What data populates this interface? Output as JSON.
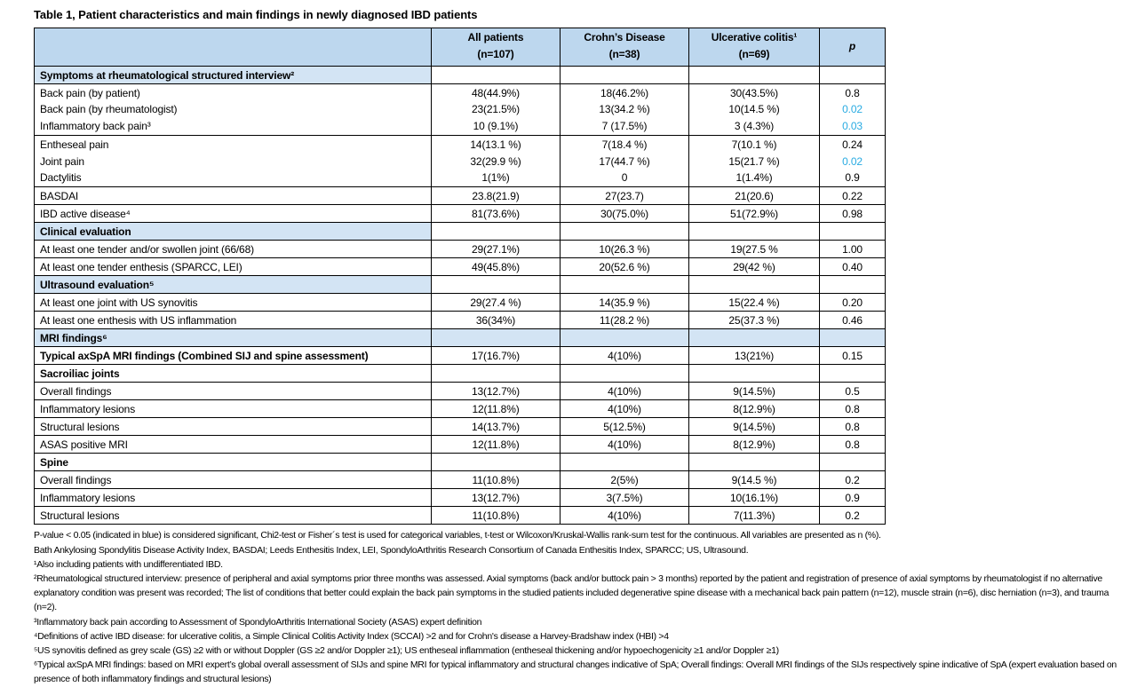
{
  "page": {
    "title": "Table 1, Patient characteristics and main findings in newly diagnosed IBD patients"
  },
  "colors": {
    "header_bg": "#BDD7EE",
    "section_bg": "#D3E4F4",
    "significant_blue": "#29ABE2",
    "border": "#000000"
  },
  "table": {
    "columns": [
      {
        "title": "",
        "n": ""
      },
      {
        "title": "All patients",
        "n": "(n=107)"
      },
      {
        "title": "Crohn’s Disease",
        "n": "(n=38)"
      },
      {
        "title": "Ulcerative colitis¹",
        "n": "(n=69)"
      },
      {
        "title": "p",
        "n": ""
      }
    ],
    "rows": [
      {
        "type": "section",
        "label": "Symptoms at rheumatological structured interview²"
      },
      {
        "type": "group",
        "labels": [
          "Back pain (by patient)",
          "Back pain (by rheumatologist)",
          "Inflammatory back pain³"
        ],
        "all": [
          "48(44.9%)",
          "23(21.5%)",
          "10 (9.1%)"
        ],
        "cd": [
          "18(46.2%)",
          "13(34.2 %)",
          "7 (17.5%)"
        ],
        "uc": [
          "30(43.5%)",
          "10(14.5 %)",
          "3 (4.3%)"
        ],
        "p": [
          {
            "v": "0.8",
            "blue": false
          },
          {
            "v": "0.02",
            "blue": true
          },
          {
            "v": "0.03",
            "blue": true
          }
        ]
      },
      {
        "type": "group",
        "labels": [
          "Entheseal pain",
          "Joint pain",
          "Dactylitis"
        ],
        "all": [
          "14(13.1 %)",
          "32(29.9 %)",
          "1(1%)"
        ],
        "cd": [
          "7(18.4 %)",
          "17(44.7 %)",
          "0"
        ],
        "uc": [
          "7(10.1 %)",
          "15(21.7 %)",
          "1(1.4%)"
        ],
        "p": [
          {
            "v": "0.24",
            "blue": false
          },
          {
            "v": "0.02",
            "blue": true
          },
          {
            "v": "0.9",
            "blue": false
          }
        ]
      },
      {
        "type": "row",
        "label": "BASDAI",
        "cells": [
          "23.8(21.9)",
          "27(23.7)",
          "21(20.6)",
          "0.22"
        ]
      },
      {
        "type": "row",
        "label": "IBD active disease⁴",
        "cells": [
          "81(73.6%)",
          "30(75.0%)",
          "51(72.9%)",
          "0.98"
        ]
      },
      {
        "type": "section",
        "label": "Clinical evaluation"
      },
      {
        "type": "row",
        "label": "At least one tender and/or swollen joint (66/68)",
        "cells": [
          "29(27.1%)",
          "10(26.3 %)",
          "19(27.5 %",
          "1.00"
        ]
      },
      {
        "type": "row",
        "label": "At least one tender enthesis (SPARCC, LEI)",
        "cells": [
          "49(45.8%)",
          "20(52.6 %)",
          "29(42 %)",
          "0.40"
        ]
      },
      {
        "type": "section",
        "label": "Ultrasound evaluation⁵"
      },
      {
        "type": "row",
        "label": "At least one joint with US synovitis",
        "cells": [
          "29(27.4 %)",
          "14(35.9 %)",
          "15(22.4 %)",
          "0.20"
        ]
      },
      {
        "type": "row",
        "label": "At least one enthesis with US inflammation",
        "cells": [
          "36(34%)",
          "11(28.2 %)",
          "25(37.3 %)",
          "0.46"
        ]
      },
      {
        "type": "section",
        "label": "MRI findings⁶",
        "full_blue": true
      },
      {
        "type": "row",
        "label": "Typical axSpA MRI findings (Combined SIJ and spine assessment)",
        "bold": true,
        "cells": [
          "17(16.7%)",
          "4(10%)",
          "13(21%)",
          "0.15"
        ]
      },
      {
        "type": "section",
        "label": "Sacroiliac joints",
        "plain": true
      },
      {
        "type": "row",
        "label": "Overall findings",
        "cells": [
          "13(12.7%)",
          "4(10%)",
          "9(14.5%)",
          "0.5"
        ]
      },
      {
        "type": "row",
        "label": "Inflammatory lesions",
        "cells": [
          "12(11.8%)",
          "4(10%)",
          "8(12.9%)",
          "0.8"
        ]
      },
      {
        "type": "row",
        "label": "Structural lesions",
        "cells": [
          "14(13.7%)",
          "5(12.5%)",
          "9(14.5%)",
          "0.8"
        ]
      },
      {
        "type": "row",
        "label": "ASAS positive MRI",
        "cells": [
          "12(11.8%)",
          "4(10%)",
          "8(12.9%)",
          "0.8"
        ]
      },
      {
        "type": "section",
        "label": "Spine",
        "plain": true
      },
      {
        "type": "row",
        "label": "Overall findings",
        "cells": [
          "11(10.8%)",
          "2(5%)",
          "9(14.5 %)",
          "0.2"
        ]
      },
      {
        "type": "row",
        "label": "Inflammatory lesions",
        "cells": [
          "13(12.7%)",
          "3(7.5%)",
          "10(16.1%)",
          "0.9"
        ]
      },
      {
        "type": "row",
        "label": "Structural lesions",
        "cells": [
          "11(10.8%)",
          "4(10%)",
          "7(11.3%)",
          "0.2"
        ]
      }
    ]
  },
  "footnotes": [
    "P-value < 0.05 (indicated in blue) is considered significant, Chi2-test or Fisher´s test is used for categorical variables, t-test or Wilcoxon/Kruskal-Wallis rank-sum test for the continuous. All variables are presented as n (%).",
    "Bath Ankylosing Spondylitis Disease Activity Index, BASDAI; Leeds Enthesitis Index, LEI, SpondyloArthritis Research Consortium of Canada Enthesitis Index, SPARCC; US, Ultrasound.",
    "¹Also including patients with undifferentiated IBD.",
    "²Rheumatological structured interview: presence of peripheral and axial symptoms prior three months was assessed. Axial symptoms (back and/or buttock pain > 3 months) reported by the patient and registration of presence of axial symptoms by rheumatologist if no alternative explanatory condition was present was recorded; The list of conditions that better could explain the back pain symptoms in the studied patients included degenerative spine disease with a mechanical back pain pattern (n=12), muscle strain (n=6), disc herniation (n=3), and trauma (n=2).",
    "³Inflammatory back pain according to Assessment of SpondyloArthritis International Society (ASAS) expert definition",
    "⁴Definitions of active IBD disease: for ulcerative colitis, a Simple Clinical Colitis Activity Index (SCCAI) >2 and for Crohn's disease a Harvey-Bradshaw index (HBI) >4",
    "⁵US synovitis defined as grey scale (GS) ≥2 with or without Doppler (GS ≥2 and/or Doppler ≥1); US entheseal inflammation (entheseal thickening and/or hypoechogenicity ≥1 and/or Doppler ≥1)",
    "⁶Typical axSpA MRI findings: based on MRI expert’s global overall assessment of SIJs and spine MRI for typical inflammatory and structural changes indicative of SpA; Overall findings: Overall MRI findings of the SIJs respectively spine indicative of SpA (expert evaluation based on presence of both inflammatory findings and structural lesions)"
  ]
}
